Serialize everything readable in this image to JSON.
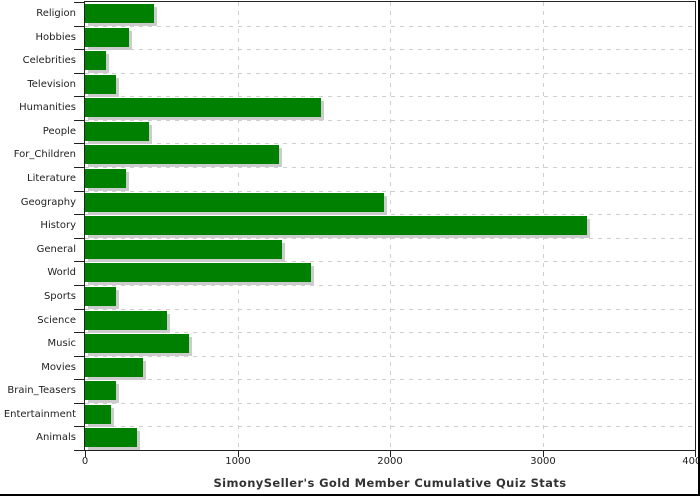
{
  "chart_data": {
    "type": "bar",
    "orientation": "horizontal",
    "title": "SimonySeller's Gold Member Cumulative Quiz Stats",
    "categories": [
      "Religion",
      "Hobbies",
      "Celebrities",
      "Television",
      "Humanities",
      "People",
      "For_Children",
      "Literature",
      "Geography",
      "History",
      "General",
      "World",
      "Sports",
      "Science",
      "Music",
      "Movies",
      "Brain_Teasers",
      "Entertainment",
      "Animals"
    ],
    "values": [
      450,
      290,
      140,
      200,
      1550,
      420,
      1270,
      270,
      1960,
      3290,
      1290,
      1480,
      200,
      540,
      680,
      380,
      200,
      170,
      340
    ],
    "xlabel": "",
    "ylabel": "",
    "xlim": [
      0,
      4000
    ],
    "x_ticks": [
      0,
      1000,
      2000,
      3000,
      4000
    ],
    "x_tick_labels": [
      "0",
      "1000",
      "2000",
      "3000",
      "4000"
    ],
    "grid": "dashed, vertical at x ticks and horizontal at category boundaries",
    "legend_position": "none",
    "colors": {
      "bar": "#008000",
      "bar_shadow": "#cccccc",
      "grid": "#cfcfcf",
      "axis": "#222222",
      "text": "#222222",
      "title_text": "#333333",
      "screen_edge": "#000000"
    }
  }
}
